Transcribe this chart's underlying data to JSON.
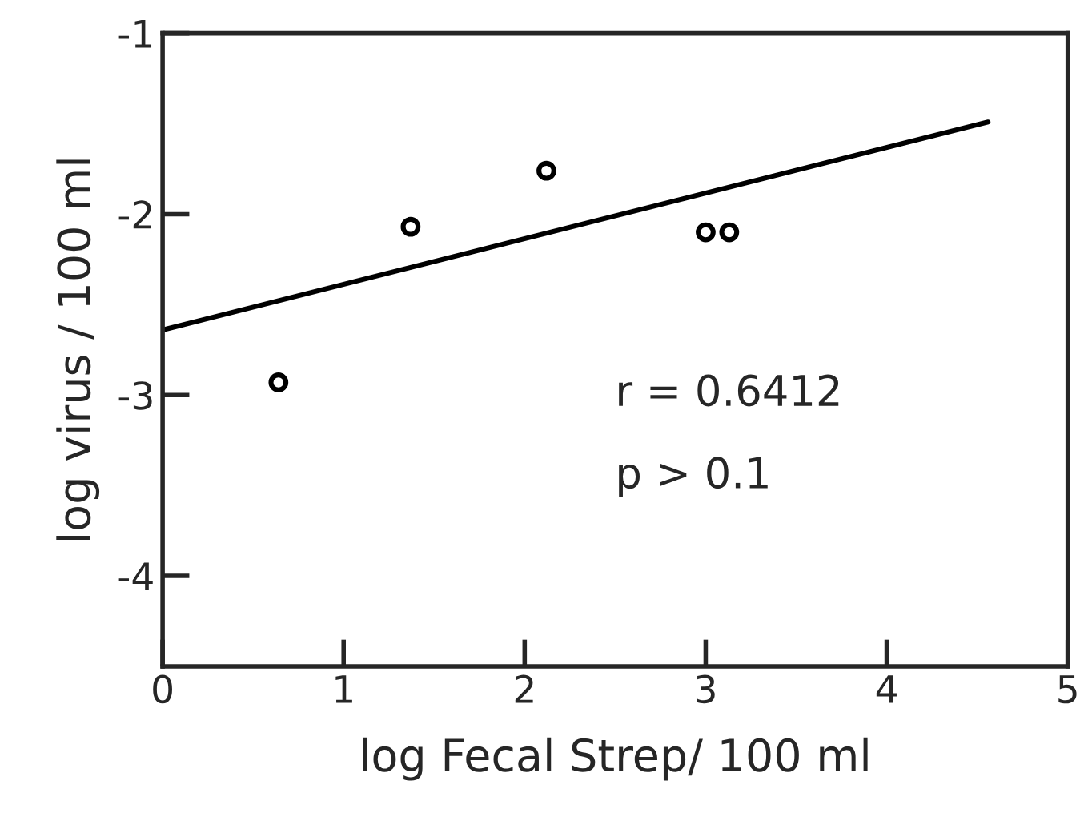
{
  "chart_data": {
    "type": "scatter",
    "xlabel": "log Fecal Strep/ 100 ml",
    "ylabel": "log virus / 100 ml",
    "xlim": [
      0,
      5
    ],
    "ylim": [
      -4.5,
      -1
    ],
    "xticks": [
      0,
      1,
      2,
      3,
      4,
      5
    ],
    "yticks": [
      -1,
      -2,
      -3,
      -4
    ],
    "grid": false,
    "legend": false,
    "series": [
      {
        "color": "#000000",
        "marker": "circle",
        "x": [
          0.64,
          1.37,
          2.12,
          3.0,
          3.13
        ],
        "values": [
          -2.93,
          -2.07,
          -1.76,
          -2.1,
          -2.1
        ]
      },
      {
        "type": "line",
        "color": "#000000",
        "marker": "none",
        "line_style": "solid",
        "x": [
          0,
          4.56
        ],
        "values": [
          -2.64,
          -1.49
        ]
      }
    ],
    "annotations": [
      "r = 0.6412",
      "p > 0.1"
    ]
  }
}
